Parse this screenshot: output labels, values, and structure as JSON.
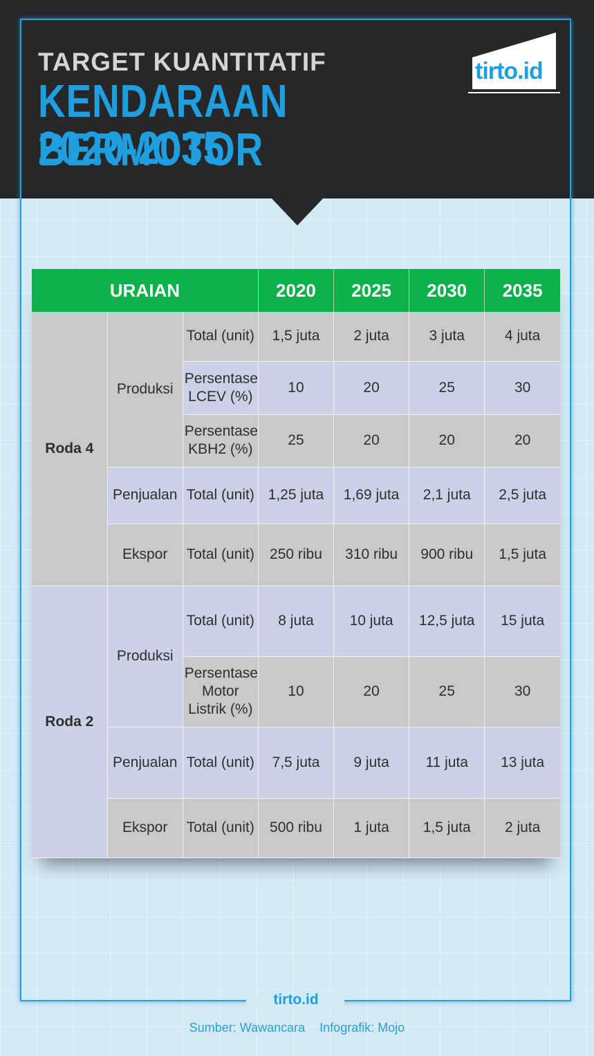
{
  "header": {
    "line1": "TARGET KUANTITATIF",
    "line2": "KENDARAAN BERMOTOR",
    "line3": "2020-2035"
  },
  "logo": {
    "text": "tirto.id"
  },
  "table": {
    "headers": [
      "URAIAN",
      "2020",
      "2025",
      "2030",
      "2035"
    ],
    "groups": [
      {
        "name": "Roda 4",
        "categories": [
          {
            "name": "Produksi",
            "rows": [
              {
                "label": "Total (unit)",
                "values": [
                  "1,5 juta",
                  "2 juta",
                  "3 juta",
                  "4 juta"
                ]
              },
              {
                "label": "Persentase LCEV (%)",
                "values": [
                  "10",
                  "20",
                  "25",
                  "30"
                ]
              },
              {
                "label": "Persentase KBH2 (%)",
                "values": [
                  "25",
                  "20",
                  "20",
                  "20"
                ]
              }
            ]
          },
          {
            "name": "Penjualan",
            "rows": [
              {
                "label": "Total (unit)",
                "values": [
                  "1,25 juta",
                  "1,69 juta",
                  "2,1 juta",
                  "2,5 juta"
                ]
              }
            ]
          },
          {
            "name": "Ekspor",
            "rows": [
              {
                "label": "Total (unit)",
                "values": [
                  "250 ribu",
                  "310 ribu",
                  "900 ribu",
                  "1,5 juta"
                ]
              }
            ]
          }
        ]
      },
      {
        "name": "Roda 2",
        "categories": [
          {
            "name": "Produksi",
            "rows": [
              {
                "label": "Total (unit)",
                "values": [
                  "8 juta",
                  "10 juta",
                  "12,5 juta",
                  "15 juta"
                ]
              },
              {
                "label": "Persentase Motor Listrik (%)",
                "values": [
                  "10",
                  "20",
                  "25",
                  "30"
                ]
              }
            ]
          },
          {
            "name": "Penjualan",
            "rows": [
              {
                "label": "Total (unit)",
                "values": [
                  "7,5 juta",
                  "9 juta",
                  "11 juta",
                  "13 juta"
                ]
              }
            ]
          },
          {
            "name": "Ekspor",
            "rows": [
              {
                "label": "Total (unit)",
                "values": [
                  "500 ribu",
                  "1 juta",
                  "1,5 juta",
                  "2 juta"
                ]
              }
            ]
          }
        ]
      }
    ]
  },
  "footer": {
    "brand": "tirto.id",
    "source": "Sumber:  Wawancara",
    "credit": "Infografik: Mojo"
  }
}
